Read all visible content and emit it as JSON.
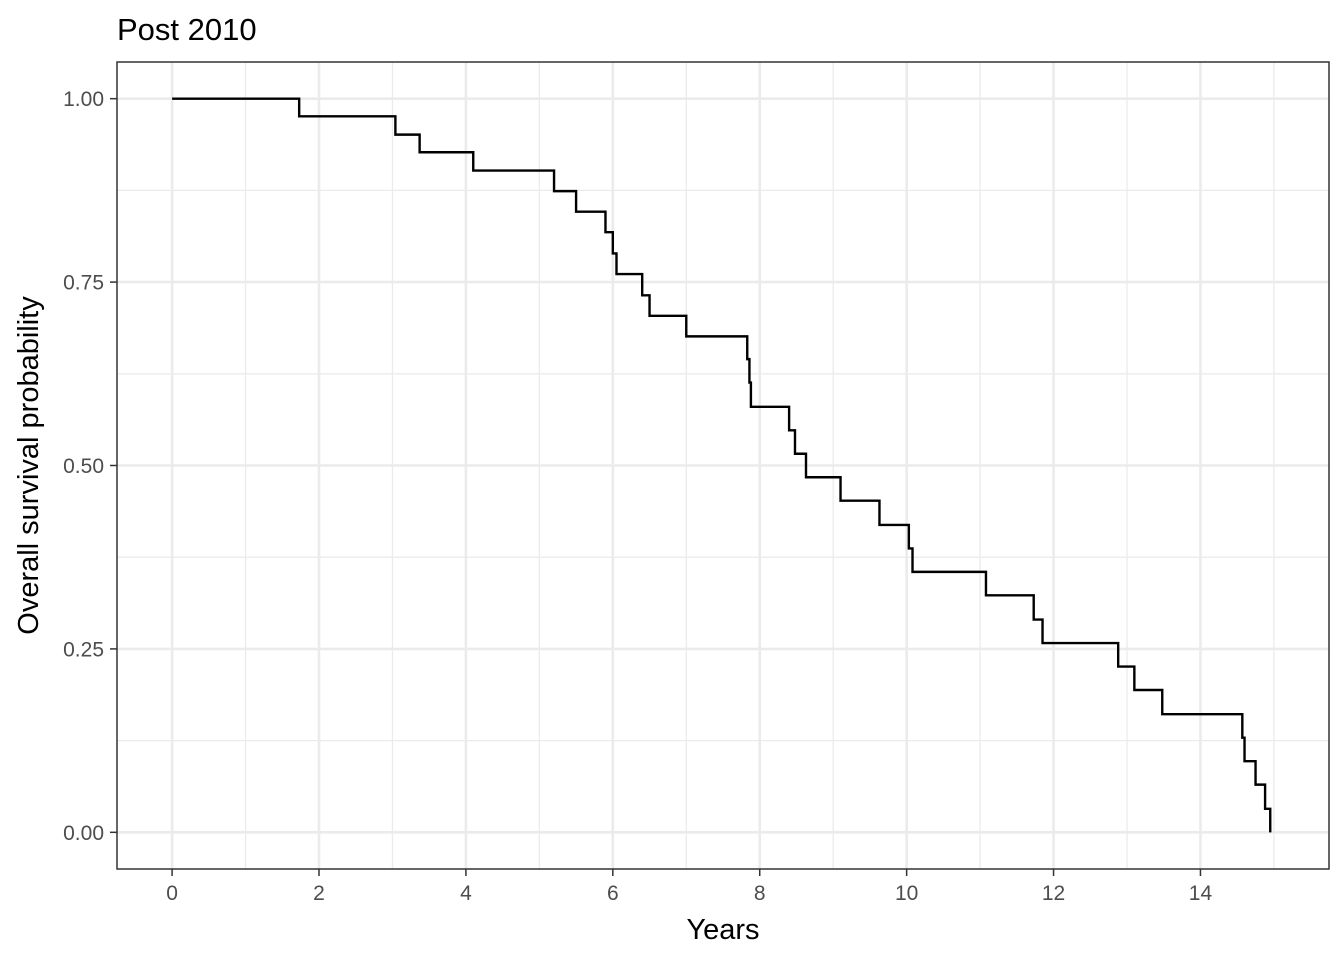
{
  "chart_data": {
    "type": "line",
    "subtype": "step",
    "title": "Post 2010",
    "xlabel": "Years",
    "ylabel": "Overall survival probability",
    "xlim": [
      -0.75,
      15.75
    ],
    "ylim": [
      -0.05,
      1.05
    ],
    "x_ticks": [
      0,
      2,
      4,
      6,
      8,
      10,
      12,
      14
    ],
    "x_tick_labels": [
      "0",
      "2",
      "4",
      "6",
      "8",
      "10",
      "12",
      "14"
    ],
    "y_ticks": [
      0,
      0.25,
      0.5,
      0.75,
      1.0
    ],
    "y_tick_labels": [
      "0.00",
      "0.25",
      "0.50",
      "0.75",
      "1.00"
    ],
    "grid": true,
    "legend": "none",
    "line_color": "#000000",
    "series": [
      {
        "x": [
          0,
          1.73,
          3.04,
          3.37,
          4.1,
          5.2,
          5.5,
          5.9,
          6.0,
          6.05,
          6.11,
          6.4,
          6.5,
          7.0,
          7.83,
          7.86,
          7.88,
          8.4,
          8.48,
          8.63,
          9.1,
          9.63,
          10.03,
          10.08,
          11.08,
          11.73,
          11.85,
          12.88,
          13.1,
          13.48,
          14.57,
          14.6,
          14.75,
          14.88,
          14.95
        ],
        "y": [
          1.0,
          0.976,
          0.951,
          0.927,
          0.902,
          0.874,
          0.846,
          0.818,
          0.789,
          0.761,
          0.761,
          0.732,
          0.704,
          0.676,
          0.645,
          0.613,
          0.58,
          0.548,
          0.516,
          0.484,
          0.452,
          0.419,
          0.387,
          0.355,
          0.323,
          0.29,
          0.258,
          0.226,
          0.194,
          0.161,
          0.129,
          0.097,
          0.065,
          0.032,
          0.0
        ]
      }
    ]
  }
}
